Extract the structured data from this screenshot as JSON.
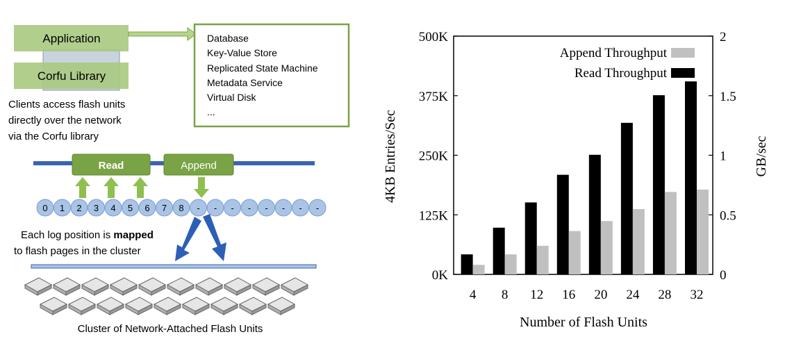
{
  "diagram": {
    "application_label": "Application",
    "corfu_library_label": "Corfu Library",
    "clients_caption": [
      "Clients access flash units",
      "directly over the network",
      "via the Corfu library"
    ],
    "use_cases": [
      "Database",
      "Key-Value Store",
      "Replicated State Machine",
      "Metadata Service",
      "Virtual Disk",
      "..."
    ],
    "read_label": "Read",
    "append_label": "Append",
    "log_positions": [
      "0",
      "1",
      "2",
      "3",
      "4",
      "5",
      "6",
      "7",
      "8",
      "-",
      "-",
      "-",
      "-",
      "-",
      "-",
      "-",
      "-"
    ],
    "mapping_caption_line1_prefix": "Each log position is ",
    "mapping_caption_line1_bold": "mapped",
    "mapping_caption_line2": "to flash pages in the cluster",
    "cluster_caption": "Cluster of Network-Attached Flash Units",
    "colors": {
      "green": "#7aa345",
      "light_green": "#b6d48c",
      "blue_bar": "#3b63b3",
      "bubble": "#a9c4e6",
      "arrow_blue": "#2c5fb5"
    }
  },
  "chart_data": {
    "type": "bar",
    "categories": [
      "4",
      "8",
      "12",
      "16",
      "20",
      "24",
      "28",
      "32"
    ],
    "series": [
      {
        "name": "Read Throughput",
        "values": [
          42000,
          98000,
          151000,
          209000,
          251000,
          318000,
          376000,
          405000
        ],
        "color": "#000000"
      },
      {
        "name": "Append Throughput",
        "values": [
          20000,
          42000,
          60000,
          91000,
          112000,
          137000,
          173000,
          178000
        ],
        "color": "#c0c0c0"
      }
    ],
    "xlabel": "Number of Flash Units",
    "ylabel": "4KB Entries/Sec",
    "y2label": "GB/sec",
    "ylim": [
      0,
      500000
    ],
    "yticks": [
      "0K",
      "125K",
      "250K",
      "375K",
      "500K"
    ],
    "y2ticks": [
      "0",
      "0.5",
      "1",
      "1.5",
      "2"
    ],
    "legend_placement": "top-right"
  }
}
